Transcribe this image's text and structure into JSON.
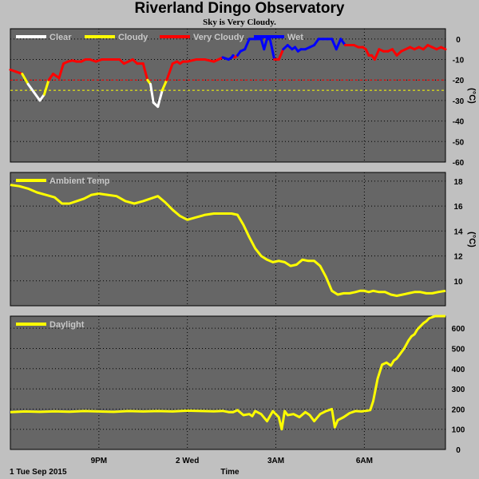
{
  "header": {
    "title": "Riverland Dingo Observatory",
    "subtitle": "Sky is Very Cloudy."
  },
  "footer": {
    "start_label": "1 Tue Sep 2015",
    "axis_title": "Time"
  },
  "x_axis": {
    "start_hour": 18.0,
    "end_hour": 32.75,
    "ticks": [
      {
        "hour": 21,
        "label": "9PM"
      },
      {
        "hour": 24,
        "label": "2 Wed"
      },
      {
        "hour": 27,
        "label": "3AM"
      },
      {
        "hour": 30,
        "label": "6AM"
      }
    ]
  },
  "colors": {
    "clear": "#ffffff",
    "cloudy": "#ffff00",
    "very_cloudy": "#ff0000",
    "wet": "#0000ff",
    "ambient": "#ffff00",
    "daylight": "#ffff00"
  },
  "chart_data": [
    {
      "type": "line",
      "name": "sky",
      "unit": "(°C)",
      "ylim": [
        -60,
        5
      ],
      "yticks": [
        0,
        -10,
        -20,
        -30,
        -40,
        -50,
        -60
      ],
      "threshold_lines": [
        {
          "value": -20,
          "color": "#ff0000"
        },
        {
          "value": -25,
          "color": "#ffff00"
        }
      ],
      "legend": [
        {
          "label": "Clear",
          "color": "#ffffff"
        },
        {
          "label": "Cloudy",
          "color": "#ffff00"
        },
        {
          "label": "Very Cloudy",
          "color": "#ff0000"
        },
        {
          "label": "Wet",
          "color": "#0000ff"
        }
      ],
      "x": [
        18.0,
        18.2,
        18.4,
        18.6,
        18.8,
        19.0,
        19.15,
        19.3,
        19.45,
        19.55,
        19.65,
        19.8,
        19.95,
        20.1,
        20.25,
        20.4,
        20.55,
        20.7,
        20.9,
        21.1,
        21.3,
        21.5,
        21.7,
        21.85,
        22.0,
        22.15,
        22.3,
        22.5,
        22.65,
        22.75,
        22.85,
        23.0,
        23.15,
        23.3,
        23.5,
        23.65,
        23.75,
        23.85,
        24.0,
        24.3,
        24.6,
        24.9,
        25.2,
        25.4,
        25.5,
        25.55,
        25.6,
        25.7,
        25.8,
        25.95,
        26.1,
        26.3,
        26.5,
        26.6,
        26.7,
        26.8,
        26.95,
        27.1,
        27.25,
        27.4,
        27.55,
        27.65,
        27.75,
        27.85,
        28.0,
        28.15,
        28.3,
        28.45,
        28.6,
        28.75,
        28.9,
        29.05,
        29.2,
        29.35,
        29.5,
        29.65,
        29.8,
        29.95,
        30.05,
        30.15,
        30.25,
        30.35,
        30.5,
        30.65,
        30.8,
        30.95,
        31.1,
        31.25,
        31.4,
        31.55,
        31.7,
        31.85,
        32.0,
        32.15,
        32.3,
        32.45,
        32.6,
        32.75
      ],
      "y": [
        -15,
        -16,
        -17,
        -22,
        -26,
        -30,
        -27,
        -20,
        -17,
        -18,
        -19,
        -12,
        -11,
        -10.5,
        -11,
        -11,
        -10,
        -10,
        -11,
        -10,
        -10,
        -10,
        -10,
        -12,
        -11,
        -10,
        -12,
        -12,
        -20,
        -22,
        -31,
        -33,
        -25,
        -20,
        -12,
        -11,
        -12,
        -11,
        -11,
        -10,
        -10,
        -11,
        -9,
        -10,
        -9,
        -8,
        -9,
        -8,
        -6,
        -5,
        0,
        0,
        0,
        -5,
        0,
        0,
        -10,
        -10,
        -5,
        -3,
        -5,
        -4,
        -6,
        -5,
        -5,
        -4,
        -3,
        0,
        0,
        0,
        0,
        -5,
        0,
        -3,
        -3,
        -3,
        -4,
        -4,
        -5,
        -8,
        -8,
        -10,
        -5,
        -6,
        -6,
        -5,
        -8,
        -6,
        -5,
        -4,
        -5,
        -4,
        -5,
        -3,
        -4,
        -5,
        -4,
        -5
      ],
      "status": [
        "very_cloudy",
        "very_cloudy",
        "very_cloudy",
        "cloudy",
        "clear",
        "clear",
        "clear",
        "cloudy",
        "very_cloudy",
        "very_cloudy",
        "very_cloudy",
        "very_cloudy",
        "very_cloudy",
        "very_cloudy",
        "very_cloudy",
        "very_cloudy",
        "very_cloudy",
        "very_cloudy",
        "very_cloudy",
        "very_cloudy",
        "very_cloudy",
        "very_cloudy",
        "very_cloudy",
        "very_cloudy",
        "very_cloudy",
        "very_cloudy",
        "very_cloudy",
        "very_cloudy",
        "very_cloudy",
        "cloudy",
        "clear",
        "clear",
        "clear",
        "cloudy",
        "very_cloudy",
        "very_cloudy",
        "very_cloudy",
        "very_cloudy",
        "very_cloudy",
        "very_cloudy",
        "very_cloudy",
        "very_cloudy",
        "very_cloudy",
        "wet",
        "wet",
        "wet",
        "wet",
        "very_cloudy",
        "wet",
        "wet",
        "wet",
        "wet",
        "wet",
        "wet",
        "wet",
        "wet",
        "wet",
        "very_cloudy",
        "very_cloudy",
        "wet",
        "wet",
        "wet",
        "wet",
        "wet",
        "wet",
        "wet",
        "wet",
        "wet",
        "wet",
        "wet",
        "wet",
        "wet",
        "wet",
        "wet",
        "very_cloudy",
        "very_cloudy",
        "very_cloudy",
        "very_cloudy",
        "very_cloudy",
        "very_cloudy",
        "very_cloudy",
        "very_cloudy",
        "very_cloudy",
        "very_cloudy",
        "very_cloudy",
        "very_cloudy",
        "very_cloudy",
        "very_cloudy",
        "very_cloudy",
        "very_cloudy",
        "very_cloudy",
        "very_cloudy",
        "very_cloudy",
        "very_cloudy",
        "very_cloudy",
        "very_cloudy",
        "very_cloudy",
        "very_cloudy"
      ]
    },
    {
      "type": "line",
      "name": "ambient",
      "unit": "(°C)",
      "ylim": [
        8,
        18.7
      ],
      "yticks": [
        18,
        16,
        14,
        12,
        10
      ],
      "legend": [
        {
          "label": "Ambient Temp",
          "color": "#ffff00"
        }
      ],
      "x": [
        18.0,
        18.3,
        18.6,
        18.9,
        19.2,
        19.5,
        19.75,
        20.0,
        20.25,
        20.5,
        20.75,
        21.0,
        21.3,
        21.6,
        21.9,
        22.2,
        22.5,
        22.75,
        23.0,
        23.25,
        23.5,
        23.75,
        24.0,
        24.3,
        24.6,
        24.9,
        25.2,
        25.5,
        25.7,
        25.9,
        26.1,
        26.3,
        26.5,
        26.7,
        26.9,
        27.1,
        27.3,
        27.5,
        27.7,
        27.9,
        28.1,
        28.3,
        28.5,
        28.7,
        28.9,
        29.1,
        29.3,
        29.5,
        29.7,
        29.85,
        30.0,
        30.15,
        30.3,
        30.5,
        30.7,
        30.9,
        31.1,
        31.3,
        31.5,
        31.7,
        31.9,
        32.1,
        32.3,
        32.5,
        32.75
      ],
      "y": [
        17.7,
        17.6,
        17.4,
        17.1,
        16.9,
        16.7,
        16.2,
        16.2,
        16.4,
        16.6,
        16.9,
        17.0,
        16.9,
        16.8,
        16.4,
        16.2,
        16.4,
        16.6,
        16.8,
        16.3,
        15.7,
        15.2,
        14.9,
        15.1,
        15.3,
        15.4,
        15.4,
        15.4,
        15.3,
        14.5,
        13.5,
        12.6,
        12.0,
        11.7,
        11.5,
        11.6,
        11.5,
        11.2,
        11.3,
        11.7,
        11.6,
        11.6,
        11.2,
        10.3,
        9.2,
        8.9,
        9.0,
        9.0,
        9.1,
        9.2,
        9.2,
        9.1,
        9.2,
        9.1,
        9.1,
        8.9,
        8.8,
        8.9,
        9.0,
        9.1,
        9.1,
        9.0,
        9.0,
        9.1,
        9.2
      ]
    },
    {
      "type": "line",
      "name": "daylight",
      "unit": "",
      "ylim": [
        0,
        660
      ],
      "yticks": [
        600,
        500,
        400,
        300,
        200,
        100,
        0
      ],
      "legend": [
        {
          "label": "Daylight",
          "color": "#ffff00"
        }
      ],
      "x": [
        18.0,
        18.5,
        19.0,
        19.5,
        20.0,
        20.5,
        21.0,
        21.5,
        22.0,
        22.5,
        23.0,
        23.5,
        24.0,
        24.5,
        24.9,
        25.2,
        25.4,
        25.55,
        25.7,
        25.9,
        26.1,
        26.2,
        26.3,
        26.5,
        26.7,
        26.9,
        27.1,
        27.2,
        27.3,
        27.4,
        27.6,
        27.8,
        28.0,
        28.15,
        28.3,
        28.5,
        28.7,
        28.9,
        29.0,
        29.1,
        29.3,
        29.5,
        29.7,
        29.9,
        30.0,
        30.1,
        30.2,
        30.3,
        30.45,
        30.6,
        30.75,
        30.9,
        31.0,
        31.1,
        31.2,
        31.35,
        31.5,
        31.6,
        31.7,
        31.8,
        31.9,
        32.0,
        32.1,
        32.2,
        32.3,
        32.4,
        32.5,
        32.6,
        32.75
      ],
      "y": [
        185,
        188,
        186,
        189,
        187,
        190,
        188,
        186,
        190,
        188,
        190,
        188,
        192,
        190,
        189,
        191,
        185,
        185,
        195,
        170,
        175,
        165,
        190,
        175,
        140,
        190,
        160,
        100,
        190,
        170,
        175,
        160,
        185,
        170,
        140,
        175,
        190,
        200,
        110,
        145,
        160,
        180,
        190,
        188,
        190,
        192,
        195,
        240,
        350,
        420,
        430,
        415,
        440,
        450,
        470,
        500,
        540,
        560,
        570,
        595,
        610,
        625,
        635,
        650,
        655,
        660,
        660,
        660,
        660
      ]
    }
  ]
}
